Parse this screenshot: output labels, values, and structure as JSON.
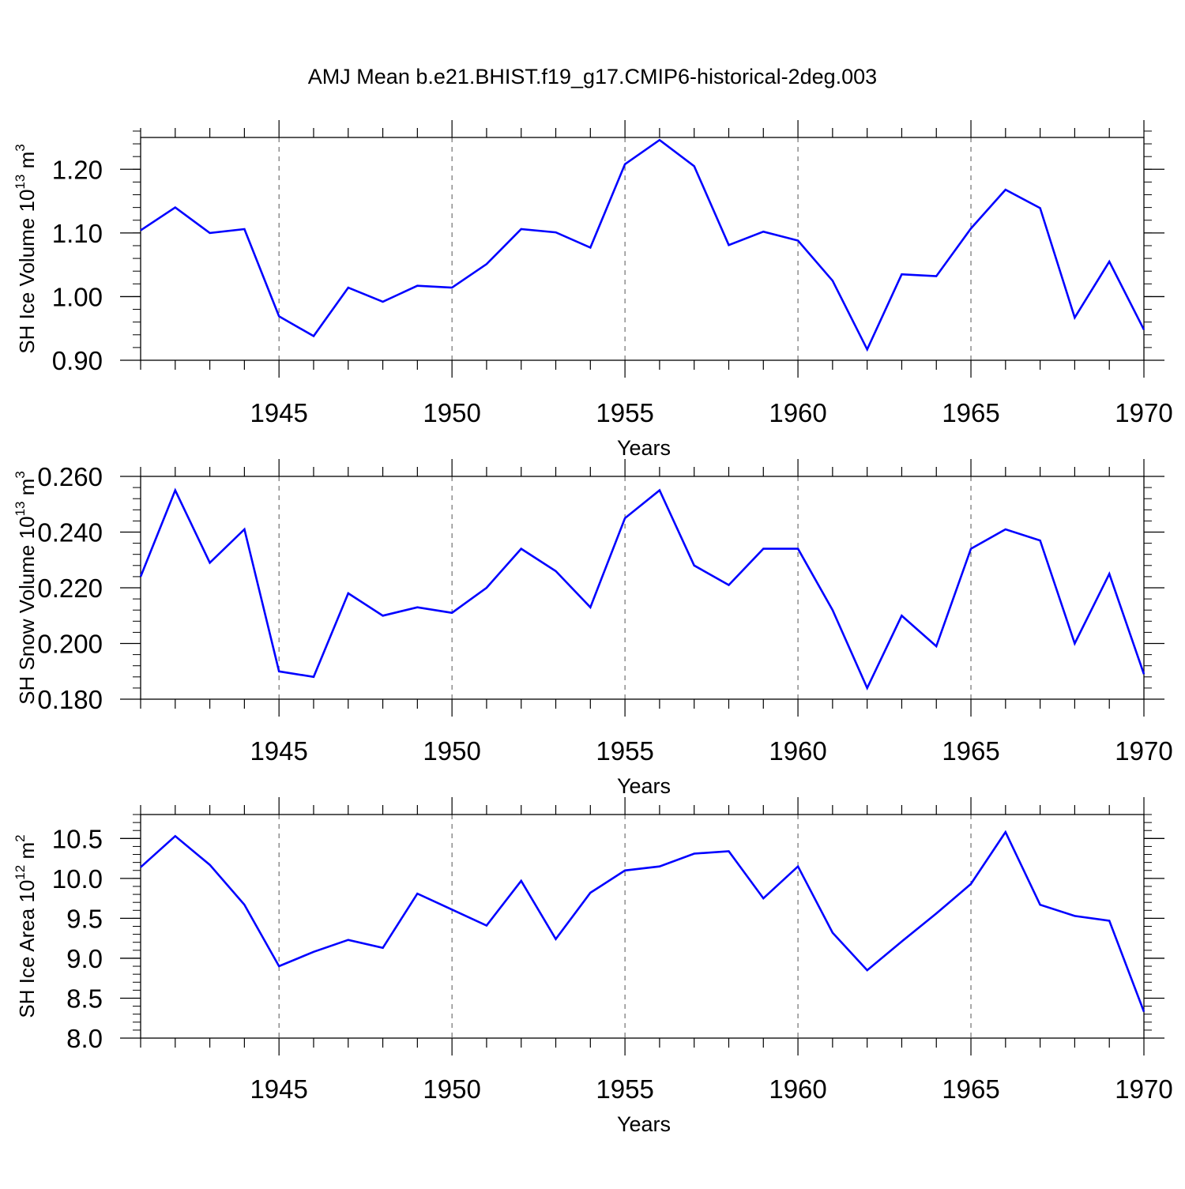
{
  "title": "AMJ Mean b.e21.BHIST.f19_g17.CMIP6-historical-2deg.003",
  "line_color": "#0000ff",
  "chart_data": [
    {
      "type": "line",
      "xlabel": "Years",
      "ylabel": "SH Ice Volume 10",
      "ylabel_exp": "13",
      "ylabel_unit": " m",
      "ylabel_unit_exp": "3",
      "xlim": [
        1941,
        1970
      ],
      "ylim": [
        0.9,
        1.25
      ],
      "x_ticks": [
        1945,
        1950,
        1955,
        1960,
        1965,
        1970
      ],
      "y_ticks": [
        "0.90",
        "1.00",
        "1.10",
        "1.20"
      ],
      "y_minor_step": 0.02,
      "grid": "vertical dashed at major x ticks",
      "series": [
        {
          "x": [
            1941,
            1942,
            1943,
            1944,
            1945,
            1946,
            1947,
            1948,
            1949,
            1950,
            1951,
            1952,
            1953,
            1954,
            1955,
            1956,
            1957,
            1958,
            1959,
            1960,
            1961,
            1962,
            1963,
            1964,
            1965,
            1966,
            1967,
            1968,
            1969,
            1970
          ],
          "values": [
            1.104,
            1.14,
            1.1,
            1.106,
            0.969,
            0.938,
            1.014,
            0.992,
            1.017,
            1.014,
            1.051,
            1.106,
            1.101,
            1.077,
            1.208,
            1.246,
            1.205,
            1.081,
            1.102,
            1.088,
            1.025,
            0.917,
            1.035,
            1.032,
            1.107,
            1.168,
            1.139,
            0.967,
            1.055,
            0.948
          ]
        }
      ]
    },
    {
      "type": "line",
      "xlabel": "Years",
      "ylabel": "SH Snow Volume 10",
      "ylabel_exp": "13",
      "ylabel_unit": " m",
      "ylabel_unit_exp": "3",
      "xlim": [
        1941,
        1970
      ],
      "ylim": [
        0.18,
        0.26
      ],
      "x_ticks": [
        1945,
        1950,
        1955,
        1960,
        1965,
        1970
      ],
      "y_ticks": [
        "0.180",
        "0.200",
        "0.220",
        "0.240",
        "0.260"
      ],
      "y_minor_step": 0.004,
      "grid": "vertical dashed at major x ticks",
      "series": [
        {
          "x": [
            1941,
            1942,
            1943,
            1944,
            1945,
            1946,
            1947,
            1948,
            1949,
            1950,
            1951,
            1952,
            1953,
            1954,
            1955,
            1956,
            1957,
            1958,
            1959,
            1960,
            1961,
            1962,
            1963,
            1964,
            1965,
            1966,
            1967,
            1968,
            1969,
            1970
          ],
          "values": [
            0.224,
            0.255,
            0.229,
            0.241,
            0.19,
            0.188,
            0.218,
            0.21,
            0.213,
            0.211,
            0.22,
            0.234,
            0.226,
            0.213,
            0.245,
            0.255,
            0.228,
            0.221,
            0.234,
            0.234,
            0.212,
            0.184,
            0.21,
            0.199,
            0.234,
            0.241,
            0.237,
            0.2,
            0.225,
            0.189
          ]
        }
      ]
    },
    {
      "type": "line",
      "xlabel": "Years",
      "ylabel": "SH Ice Area 10",
      "ylabel_exp": "12",
      "ylabel_unit": " m",
      "ylabel_unit_exp": "2",
      "xlim": [
        1941,
        1970
      ],
      "ylim": [
        8.0,
        10.8
      ],
      "x_ticks": [
        1945,
        1950,
        1955,
        1960,
        1965,
        1970
      ],
      "y_ticks": [
        "8.0",
        "8.5",
        "9.0",
        "9.5",
        "10.0",
        "10.5"
      ],
      "y_minor_step": 0.1,
      "grid": "vertical dashed at major x ticks",
      "series": [
        {
          "x": [
            1941,
            1942,
            1943,
            1944,
            1945,
            1946,
            1947,
            1948,
            1949,
            1950,
            1951,
            1952,
            1953,
            1954,
            1955,
            1956,
            1957,
            1958,
            1959,
            1960,
            1961,
            1962,
            1963,
            1964,
            1965,
            1966,
            1967,
            1968,
            1969,
            1970
          ],
          "values": [
            10.14,
            10.53,
            10.17,
            9.67,
            8.9,
            9.08,
            9.23,
            9.13,
            9.81,
            9.61,
            9.41,
            9.97,
            9.24,
            9.82,
            10.1,
            10.15,
            10.31,
            10.34,
            9.75,
            10.15,
            9.32,
            8.85,
            9.21,
            9.56,
            9.93,
            10.58,
            9.67,
            9.53,
            9.47,
            8.33
          ]
        }
      ]
    }
  ]
}
